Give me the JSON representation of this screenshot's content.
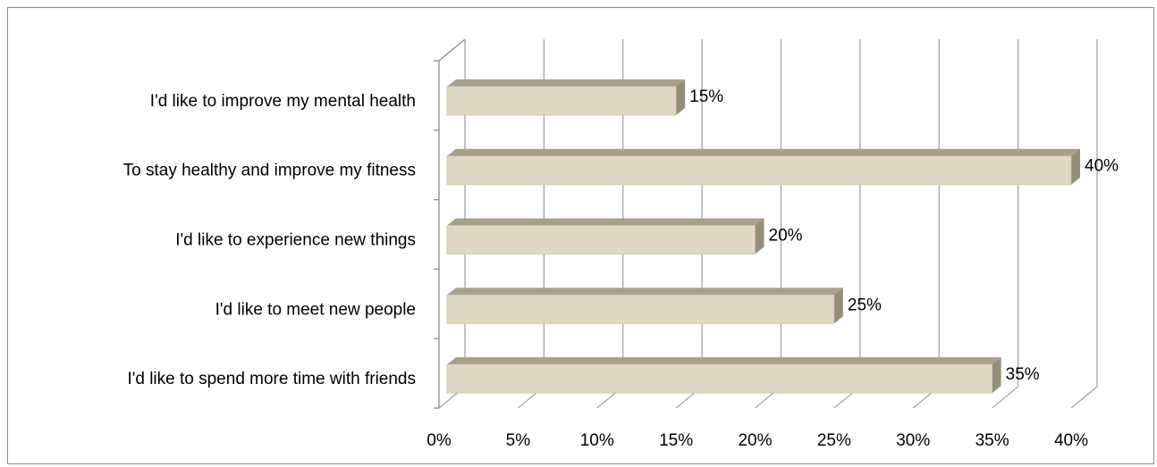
{
  "colors": {
    "bar_front": "#ddd9c3",
    "bar_top": "#a5a18c",
    "bar_side": "#938f79",
    "grid": "#a6a6a6",
    "axis": "#8c8c8c"
  },
  "chart_data": {
    "type": "bar",
    "orientation": "horizontal",
    "style": "3d-clustered",
    "title": "",
    "xlabel": "",
    "ylabel": "",
    "categories": [
      "I'd like to improve my mental health",
      "To stay healthy and improve my fitness",
      "I'd like to experience new things",
      "I'd like to meet new people",
      "I'd like to spend more time with friends"
    ],
    "values": [
      15,
      40,
      20,
      25,
      35
    ],
    "data_labels": [
      "15%",
      "40%",
      "20%",
      "25%",
      "35%"
    ],
    "xlim": [
      0,
      40
    ],
    "x_ticks": [
      0,
      5,
      10,
      15,
      20,
      25,
      30,
      35,
      40
    ],
    "x_tick_labels": [
      "0%",
      "5%",
      "10%",
      "15%",
      "20%",
      "25%",
      "30%",
      "35%",
      "40%"
    ],
    "grid": true,
    "legend": "none"
  }
}
